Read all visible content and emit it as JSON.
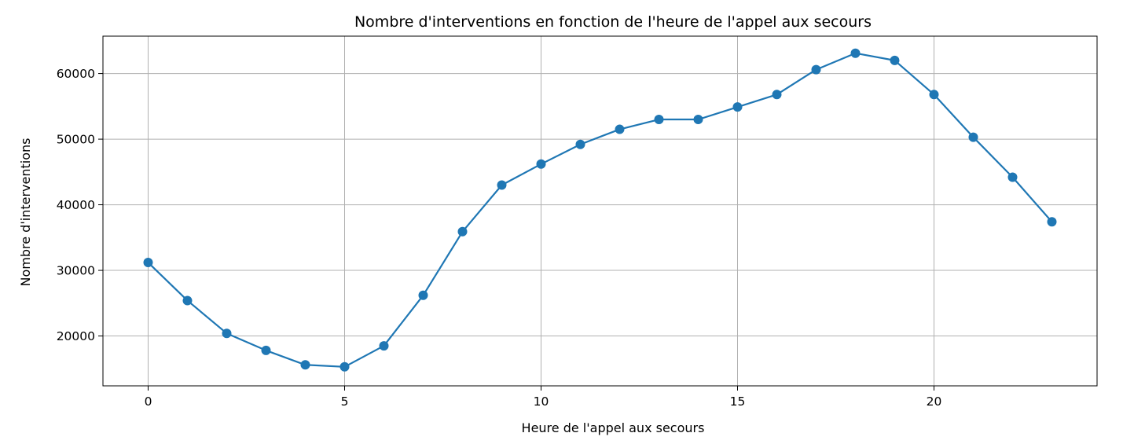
{
  "chart_data": {
    "type": "line",
    "title": "Nombre d'interventions en fonction de l'heure de l'appel aux secours",
    "xlabel": "Heure de l'appel aux secours",
    "ylabel": "Nombre d'interventions",
    "xlim": [
      -1.15,
      24.15
    ],
    "ylim": [
      12400,
      65700
    ],
    "xticks": [
      0,
      5,
      10,
      15,
      20
    ],
    "xtick_labels": [
      "0",
      "5",
      "10",
      "15",
      "20"
    ],
    "yticks": [
      20000,
      30000,
      40000,
      50000,
      60000
    ],
    "ytick_labels": [
      "20000",
      "30000",
      "40000",
      "50000",
      "60000"
    ],
    "grid": true,
    "legend": "none",
    "color": "#1f77b4",
    "series": [
      {
        "x": [
          0,
          1,
          2,
          3,
          4,
          5,
          6,
          7,
          8,
          9,
          10,
          11,
          12,
          13,
          14,
          15,
          16,
          17,
          18,
          19,
          20,
          21,
          22,
          23
        ],
        "values": [
          31200,
          25400,
          20400,
          17800,
          15600,
          15300,
          18500,
          26200,
          35900,
          43000,
          46200,
          49200,
          51500,
          53000,
          53000,
          54900,
          56800,
          60600,
          63100,
          62000,
          56800,
          50300,
          44200,
          37400
        ]
      }
    ]
  }
}
